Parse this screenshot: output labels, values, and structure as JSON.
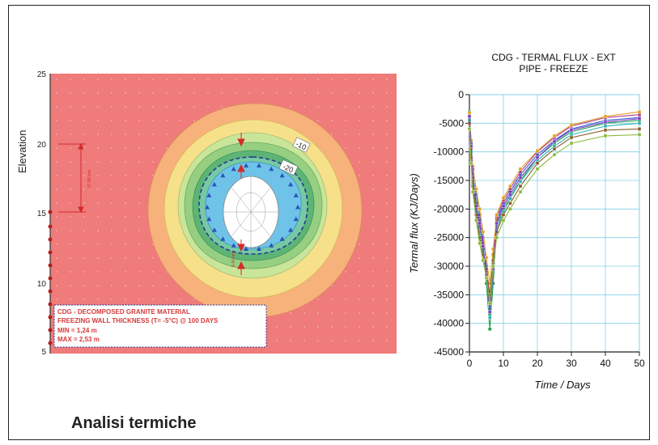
{
  "footer": {
    "title": "Analisi termiche"
  },
  "contour": {
    "ylabel": "Elevation",
    "yticks": [
      "25",
      "20",
      "15",
      "10",
      "5"
    ],
    "dimension_labels": [
      "37.99 mm",
      "9.40 mm"
    ],
    "contour_labels": [
      "-10",
      "-20"
    ],
    "info_box": {
      "line1": "CDG - DECOMPOSED GRANITE MATERIAL",
      "line2": "FREEZING WALL THICKNESS (T= -5°C) @ 100 DAYS",
      "line3": "MIN  = 1,24 m",
      "line4": "MAX = 2,53 m"
    },
    "colors": {
      "outer": "#ef7b7b",
      "orange": "#f6b27a",
      "yellow": "#f7e08a",
      "lightgreen": "#c9e59a",
      "green1": "#96cf82",
      "green2": "#5db575",
      "blue": "#6fc2e8",
      "core": "#ffffff",
      "box_border": "#2d3a8c",
      "box_text": "#d63a3a"
    }
  },
  "chart_data": {
    "type": "line",
    "title": "CDG - TERMAL FLUX - EXT\nPIPE - FREEZE",
    "title_line1": "CDG - TERMAL FLUX - EXT",
    "title_line2": "PIPE - FREEZE",
    "xlabel": "Time / Days",
    "ylabel": "Termal flux (KJ/Days)",
    "xlim": [
      0,
      50
    ],
    "ylim": [
      -45000,
      0
    ],
    "xticks": [
      0,
      10,
      20,
      30,
      40,
      50
    ],
    "yticks": [
      0,
      -5000,
      -10000,
      -15000,
      -20000,
      -25000,
      -30000,
      -35000,
      -40000,
      -45000
    ],
    "grid": true,
    "x": [
      0,
      0.5,
      1,
      2,
      3,
      4,
      5,
      6,
      7,
      8,
      10,
      12,
      15,
      20,
      25,
      30,
      40,
      50
    ],
    "series": [
      {
        "color": "#1f9e4a",
        "values": [
          -3000,
          -9000,
          -14000,
          -19000,
          -22000,
          -27000,
          -33000,
          -41000,
          -33000,
          -23000,
          -20000,
          -18000,
          -15000,
          -11000,
          -8500,
          -6500,
          -5000,
          -4500
        ]
      },
      {
        "color": "#3a57c9",
        "values": [
          -3500,
          -8500,
          -13000,
          -17500,
          -21000,
          -25000,
          -30000,
          -37000,
          -30000,
          -22000,
          -19000,
          -17000,
          -14000,
          -10500,
          -8000,
          -6000,
          -4500,
          -4000
        ]
      },
      {
        "color": "#b23b8c",
        "values": [
          -4000,
          -9500,
          -15000,
          -20000,
          -23000,
          -26000,
          -31000,
          -36000,
          -28000,
          -21500,
          -18500,
          -16500,
          -13500,
          -10000,
          -7500,
          -5500,
          -4000,
          -3500
        ]
      },
      {
        "color": "#e0a11f",
        "values": [
          -3200,
          -8000,
          -12500,
          -16500,
          -20000,
          -24000,
          -28500,
          -33000,
          -27000,
          -21000,
          -18000,
          -16000,
          -13000,
          -9800,
          -7200,
          -5300,
          -3800,
          -3000
        ]
      },
      {
        "color": "#2fb3b3",
        "values": [
          -4500,
          -10000,
          -15500,
          -20500,
          -24000,
          -27500,
          -32000,
          -39000,
          -31000,
          -23500,
          -20500,
          -18200,
          -15200,
          -11500,
          -9000,
          -7000,
          -5500,
          -5000
        ]
      },
      {
        "color": "#8a5a2b",
        "values": [
          -5000,
          -11000,
          -16000,
          -21000,
          -25000,
          -28000,
          -30500,
          -35000,
          -29000,
          -24000,
          -21000,
          -19000,
          -16000,
          -12000,
          -9500,
          -7500,
          -6200,
          -6000
        ]
      },
      {
        "color": "#7a3fc2",
        "values": [
          -3800,
          -9000,
          -14500,
          -19500,
          -22500,
          -26500,
          -31500,
          -38000,
          -30500,
          -22500,
          -19500,
          -17500,
          -14500,
          -11000,
          -8200,
          -6200,
          -4800,
          -4200
        ]
      },
      {
        "color": "#8ab83a",
        "values": [
          -6000,
          -12000,
          -17000,
          -22000,
          -26000,
          -29000,
          -32000,
          -36500,
          -30000,
          -25000,
          -22000,
          -20000,
          -17000,
          -13000,
          -10500,
          -8500,
          -7200,
          -7000
        ]
      }
    ]
  }
}
